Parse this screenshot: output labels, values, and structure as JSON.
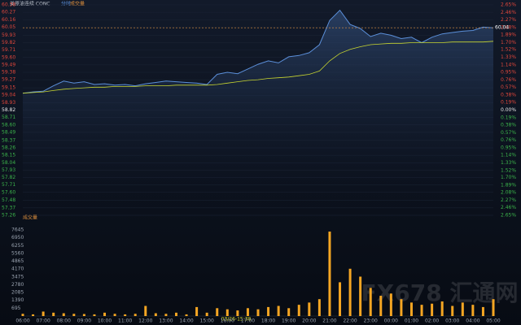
{
  "chart_data": [
    {
      "type": "line",
      "title": "美原油连续 CONC",
      "tabs": [
        "分时",
        "成交量"
      ],
      "categories": [
        "06:00",
        null,
        "07:00",
        null,
        "08:00",
        null,
        "09:00",
        null,
        "10:00",
        null,
        "11:00",
        null,
        "12:00",
        null,
        "13:00",
        null,
        "14:00",
        null,
        "15:00",
        null,
        "16:00",
        null,
        "17:00",
        null,
        "18:00",
        null,
        "19:00",
        null,
        "20:00",
        null,
        "21:00",
        null,
        "22:00",
        null,
        "23:00",
        null,
        "00:00",
        null,
        "01:00",
        null,
        "02:00",
        null,
        "03:00",
        null,
        "04:00",
        null,
        "05:00"
      ],
      "series": [
        {
          "name": "price",
          "color": "#5b8fd9",
          "values": [
            59.07,
            59.09,
            59.1,
            59.18,
            59.25,
            59.22,
            59.24,
            59.2,
            59.21,
            59.19,
            59.2,
            59.18,
            59.21,
            59.23,
            59.25,
            59.24,
            59.23,
            59.22,
            59.2,
            59.35,
            59.38,
            59.36,
            59.43,
            59.5,
            59.55,
            59.52,
            59.61,
            59.63,
            59.67,
            59.79,
            60.15,
            60.3,
            60.09,
            60.03,
            59.91,
            59.96,
            59.93,
            59.88,
            59.9,
            59.82,
            59.9,
            59.95,
            59.97,
            59.99,
            60.0,
            60.05,
            60.04
          ]
        },
        {
          "name": "average",
          "color": "#c8d630",
          "values": [
            59.07,
            59.08,
            59.09,
            59.11,
            59.13,
            59.14,
            59.15,
            59.16,
            59.16,
            59.17,
            59.17,
            59.17,
            59.18,
            59.18,
            59.18,
            59.19,
            59.19,
            59.19,
            59.19,
            59.2,
            59.22,
            59.24,
            59.26,
            59.27,
            59.29,
            59.3,
            59.31,
            59.33,
            59.35,
            59.4,
            59.55,
            59.66,
            59.72,
            59.76,
            59.79,
            59.8,
            59.81,
            59.81,
            59.82,
            59.82,
            59.82,
            59.82,
            59.83,
            59.83,
            59.83,
            59.83,
            59.84
          ]
        }
      ],
      "ylim": [
        57.26,
        60.38
      ],
      "yticks": [
        60.38,
        60.27,
        60.16,
        60.05,
        59.93,
        59.82,
        59.71,
        {
          "value": 59.6,
          "label": "59.60"
        },
        59.49,
        59.38,
        59.27,
        59.15,
        59.04,
        58.93,
        58.82,
        58.71,
        {
          "value": 58.6,
          "label": "58.60"
        },
        58.49,
        58.37,
        58.26,
        58.15,
        58.04,
        57.93,
        57.82,
        57.71,
        {
          "value": 57.6,
          "label": "57.60"
        },
        57.48,
        57.37,
        57.26
      ],
      "y2lim": [
        -2.65,
        2.65
      ],
      "y2ticks": [
        {
          "value": 2.65,
          "label": "2.65%"
        },
        {
          "value": 2.46,
          "label": "2.46%"
        },
        {
          "value": 2.27,
          "label": "2.27%"
        },
        {
          "value": 2.08,
          "label": "2.08%"
        },
        {
          "value": 1.89,
          "label": "1.89%"
        },
        {
          "value": 1.7,
          "label": "1.70%"
        },
        {
          "value": 1.52,
          "label": "1.52%"
        },
        {
          "value": 1.33,
          "label": "1.33%"
        },
        {
          "value": 1.14,
          "label": "1.14%"
        },
        {
          "value": 0.95,
          "label": "0.95%"
        },
        {
          "value": 0.76,
          "label": "0.76%"
        },
        {
          "value": 0.57,
          "label": "0.57%"
        },
        {
          "value": 0.38,
          "label": "0.38%"
        },
        {
          "value": 0.19,
          "label": "0.19%"
        },
        {
          "value": 0,
          "label": "0.00%"
        },
        {
          "value": -0.19,
          "label": "0.19%"
        },
        {
          "value": -0.38,
          "label": "0.38%"
        },
        {
          "value": -0.57,
          "label": "0.57%"
        },
        {
          "value": -0.76,
          "label": "0.76%"
        },
        {
          "value": -0.95,
          "label": "0.95%"
        },
        {
          "value": -1.14,
          "label": "1.14%"
        },
        {
          "value": -1.33,
          "label": "1.33%"
        },
        {
          "value": -1.52,
          "label": "1.52%"
        },
        {
          "value": -1.7,
          "label": "1.70%"
        },
        {
          "value": -1.89,
          "label": "1.89%"
        },
        {
          "value": -2.08,
          "label": "2.08%"
        },
        {
          "value": -2.27,
          "label": "2.27%"
        },
        {
          "value": -2.46,
          "label": "2.46%"
        },
        {
          "value": -2.65,
          "label": "2.65%"
        }
      ],
      "up_color": "#e0473c",
      "down_color": "#3cb44b",
      "flat_color": "#e8e8e8",
      "last_price": 60.04,
      "last_color": "#e0903c",
      "cursor_label": "03/26-15:38",
      "grid": true
    },
    {
      "type": "bar",
      "title": "成交量",
      "color": "#f5a623",
      "values": [
        200,
        150,
        400,
        300,
        250,
        200,
        180,
        150,
        300,
        200,
        150,
        200,
        900,
        250,
        200,
        300,
        150,
        800,
        300,
        700,
        600,
        500,
        700,
        600,
        800,
        900,
        700,
        1000,
        1200,
        1500,
        7500,
        3000,
        4200,
        3500,
        2500,
        1800,
        2000,
        1500,
        1200,
        1000,
        1100,
        1300,
        900,
        1200,
        1000,
        800,
        1500
      ],
      "ylim": [
        0,
        7645
      ],
      "yticks": [
        7645,
        6950,
        6255,
        5560,
        4865,
        4170,
        3475,
        2780,
        2085,
        1390,
        695
      ],
      "watermark": "FX678 汇通网"
    }
  ]
}
